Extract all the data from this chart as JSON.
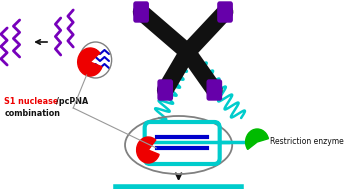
{
  "bg_color": "#ffffff",
  "purple_wave_color": "#7700bb",
  "cyan_spring_color": "#00cccc",
  "black_chromosome_color": "#111111",
  "purple_cap_color": "#6600aa",
  "red_nuclease_color": "#ee0000",
  "green_enzyme_color": "#00bb00",
  "blue_pna_color": "#0000cc",
  "cyan_dna_color": "#00cccc",
  "arrow_color": "#111111",
  "label_red": "#ee0000",
  "label_black": "#111111",
  "gray_line_color": "#999999",
  "s1_label": "S1 nuclease",
  "pcpna_label": "/pcPNA",
  "combo_label": "combination",
  "restriction_label": "Restriction enzyme"
}
